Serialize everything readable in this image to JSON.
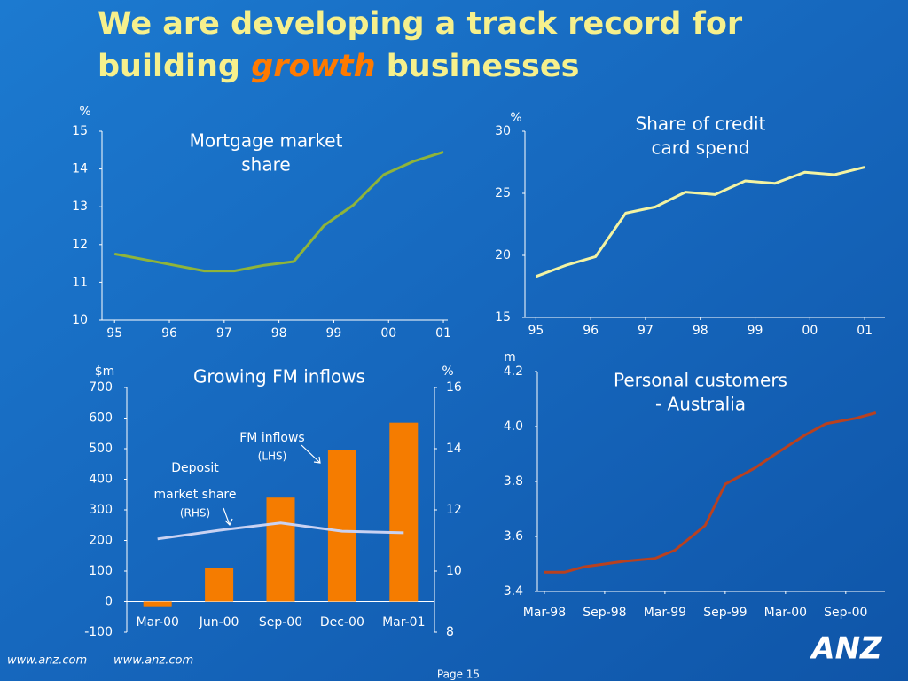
{
  "title_parts": [
    "We are developing a track record for",
    "building",
    "growth",
    "businesses"
  ],
  "chart_data": [
    {
      "type": "line",
      "title_lines": [
        "Mortgage market",
        "share"
      ],
      "y_label": "%",
      "x": [
        1995,
        1995.55,
        1996.09,
        1996.64,
        1997.18,
        1997.73,
        1998.27,
        1998.82,
        1999.36,
        1999.91,
        2000.45,
        2001
      ],
      "series": [
        {
          "color": "#8fb43a",
          "values": [
            11.75,
            11.6,
            11.45,
            11.3,
            11.3,
            11.45,
            11.55,
            12.5,
            13.05,
            13.85,
            14.2,
            14.45
          ]
        }
      ],
      "xlim": [
        1994.77,
        2001.08
      ],
      "xticks": [
        {
          "value": 1995,
          "label": "95"
        },
        {
          "value": 1996,
          "label": "96"
        },
        {
          "value": 1997,
          "label": "97"
        },
        {
          "value": 1998,
          "label": "98"
        },
        {
          "value": 1999,
          "label": "99"
        },
        {
          "value": 2000,
          "label": "00"
        },
        {
          "value": 2001,
          "label": "01"
        }
      ],
      "ylim": [
        10,
        15
      ],
      "yticks": [
        10,
        11,
        12,
        13,
        14,
        15
      ]
    },
    {
      "type": "line",
      "title_lines": [
        "Share of credit",
        "card spend"
      ],
      "y_label": "%",
      "x": [
        1995,
        1995.55,
        1996.09,
        1996.64,
        1997.18,
        1997.73,
        1998.27,
        1998.82,
        1999.36,
        1999.91,
        2000.45,
        2001
      ],
      "series": [
        {
          "color": "#f3f3a2",
          "values": [
            18.3,
            19.2,
            19.9,
            23.4,
            23.9,
            25.1,
            24.9,
            26.0,
            25.8,
            26.7,
            26.5,
            27.1
          ]
        }
      ],
      "xlim": [
        1994.8,
        2001.37
      ],
      "xticks": [
        {
          "value": 1995,
          "label": "95"
        },
        {
          "value": 1996,
          "label": "96"
        },
        {
          "value": 1997,
          "label": "97"
        },
        {
          "value": 1998,
          "label": "98"
        },
        {
          "value": 1999,
          "label": "99"
        },
        {
          "value": 2000,
          "label": "00"
        },
        {
          "value": 2001,
          "label": "01"
        }
      ],
      "ylim": [
        15,
        30
      ],
      "yticks": [
        15,
        20,
        25,
        30
      ]
    },
    {
      "type": "bar",
      "title": "Growing FM inflows",
      "y_label": "$m",
      "y2_label": "%",
      "categories": [
        "Mar-00",
        "Jun-00",
        "Sep-00",
        "Dec-00",
        "Mar-01"
      ],
      "series": [
        {
          "color": "#f57c00",
          "values": [
            -15,
            110,
            340,
            495,
            585
          ]
        },
        {
          "color": "#c9d2f2",
          "axis": "y2",
          "values": [
            11.05,
            11.33,
            11.57,
            11.3,
            11.25
          ]
        }
      ],
      "ylim": [
        -100,
        700
      ],
      "yticks": [
        -100,
        0,
        100,
        200,
        300,
        400,
        500,
        600,
        700
      ],
      "y2lim": [
        8,
        16
      ],
      "y2ticks": [
        8,
        10,
        12,
        14,
        16
      ],
      "annotations": [
        "FM inflows",
        "(LHS)",
        "Deposit",
        "market share",
        "(RHS)"
      ]
    },
    {
      "type": "line",
      "title_lines": [
        "Personal customers",
        "- Australia"
      ],
      "y_label": "m",
      "x": [
        0,
        2,
        4,
        6,
        8,
        11,
        13,
        16,
        18,
        21,
        23,
        26,
        28,
        31,
        33
      ],
      "series": [
        {
          "color": "#b9411f",
          "values": [
            3.47,
            3.47,
            3.49,
            3.5,
            3.51,
            3.52,
            3.55,
            3.64,
            3.79,
            3.85,
            3.9,
            3.97,
            4.01,
            4.03,
            4.05
          ]
        }
      ],
      "xlim": [
        -0.7,
        33.9
      ],
      "xticks": [
        {
          "value": 0,
          "label": "Mar-98"
        },
        {
          "value": 6,
          "label": "Sep-98"
        },
        {
          "value": 12,
          "label": "Mar-99"
        },
        {
          "value": 18,
          "label": "Sep-99"
        },
        {
          "value": 24,
          "label": "Mar-00"
        },
        {
          "value": 30,
          "label": "Sep-00"
        }
      ],
      "ylim": [
        3.4,
        4.2
      ],
      "yticks": [
        3.4,
        3.6,
        3.8,
        {
          "value": 4,
          "label": "4.0"
        },
        4.2
      ]
    }
  ],
  "footer": {
    "links": [
      "www.anz.com",
      "www.anz.com"
    ],
    "page": "Page 15",
    "logo": "ANZ"
  }
}
